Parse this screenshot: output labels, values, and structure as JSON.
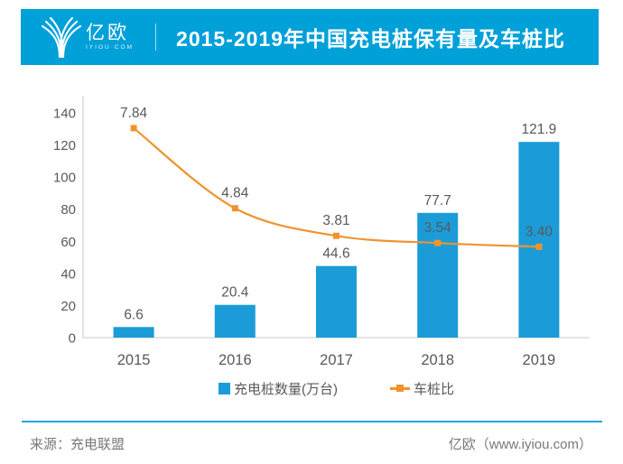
{
  "header": {
    "logo": {
      "cn": "亿欧",
      "sub": "IYIOU·COM"
    },
    "title": "2015-2019年中国充电桩保有量及车桩比"
  },
  "chart_data": {
    "type": "bar",
    "categories": [
      "2015",
      "2016",
      "2017",
      "2018",
      "2019"
    ],
    "series": [
      {
        "name": "充电桩数量(万台)",
        "type": "bar",
        "color": "#1B9CD8",
        "values": [
          6.6,
          20.4,
          44.6,
          77.7,
          121.9
        ],
        "labels": [
          "6.6",
          "20.4",
          "44.6",
          "77.7",
          "121.9"
        ]
      },
      {
        "name": "车桩比",
        "type": "line",
        "color": "#F0932F",
        "values": [
          7.84,
          4.84,
          3.81,
          3.54,
          3.4
        ],
        "labels": [
          "7.84",
          "4.84",
          "3.81",
          "3.54",
          "3.40"
        ]
      }
    ],
    "title": "2015-2019年中国充电桩保有量及车桩比",
    "xlabel": "",
    "ylabel": "",
    "y_ticks": [
      0,
      20,
      40,
      60,
      80,
      100,
      120,
      140
    ],
    "ylim": [
      0,
      140
    ],
    "grid": false,
    "legend_position": "bottom"
  },
  "legend": {
    "bar_label": "充电桩数量(万台)",
    "line_label": "车桩比"
  },
  "footer": {
    "source": "来源：充电联盟",
    "brand": "亿欧（www.iyiou.com）"
  },
  "colors": {
    "header_bg": "#00A0D9",
    "bar": "#1B9CD8",
    "line": "#F0932F",
    "axis": "#D4D4D4",
    "text": "#595959",
    "footer_rule": "#25A5DC"
  }
}
